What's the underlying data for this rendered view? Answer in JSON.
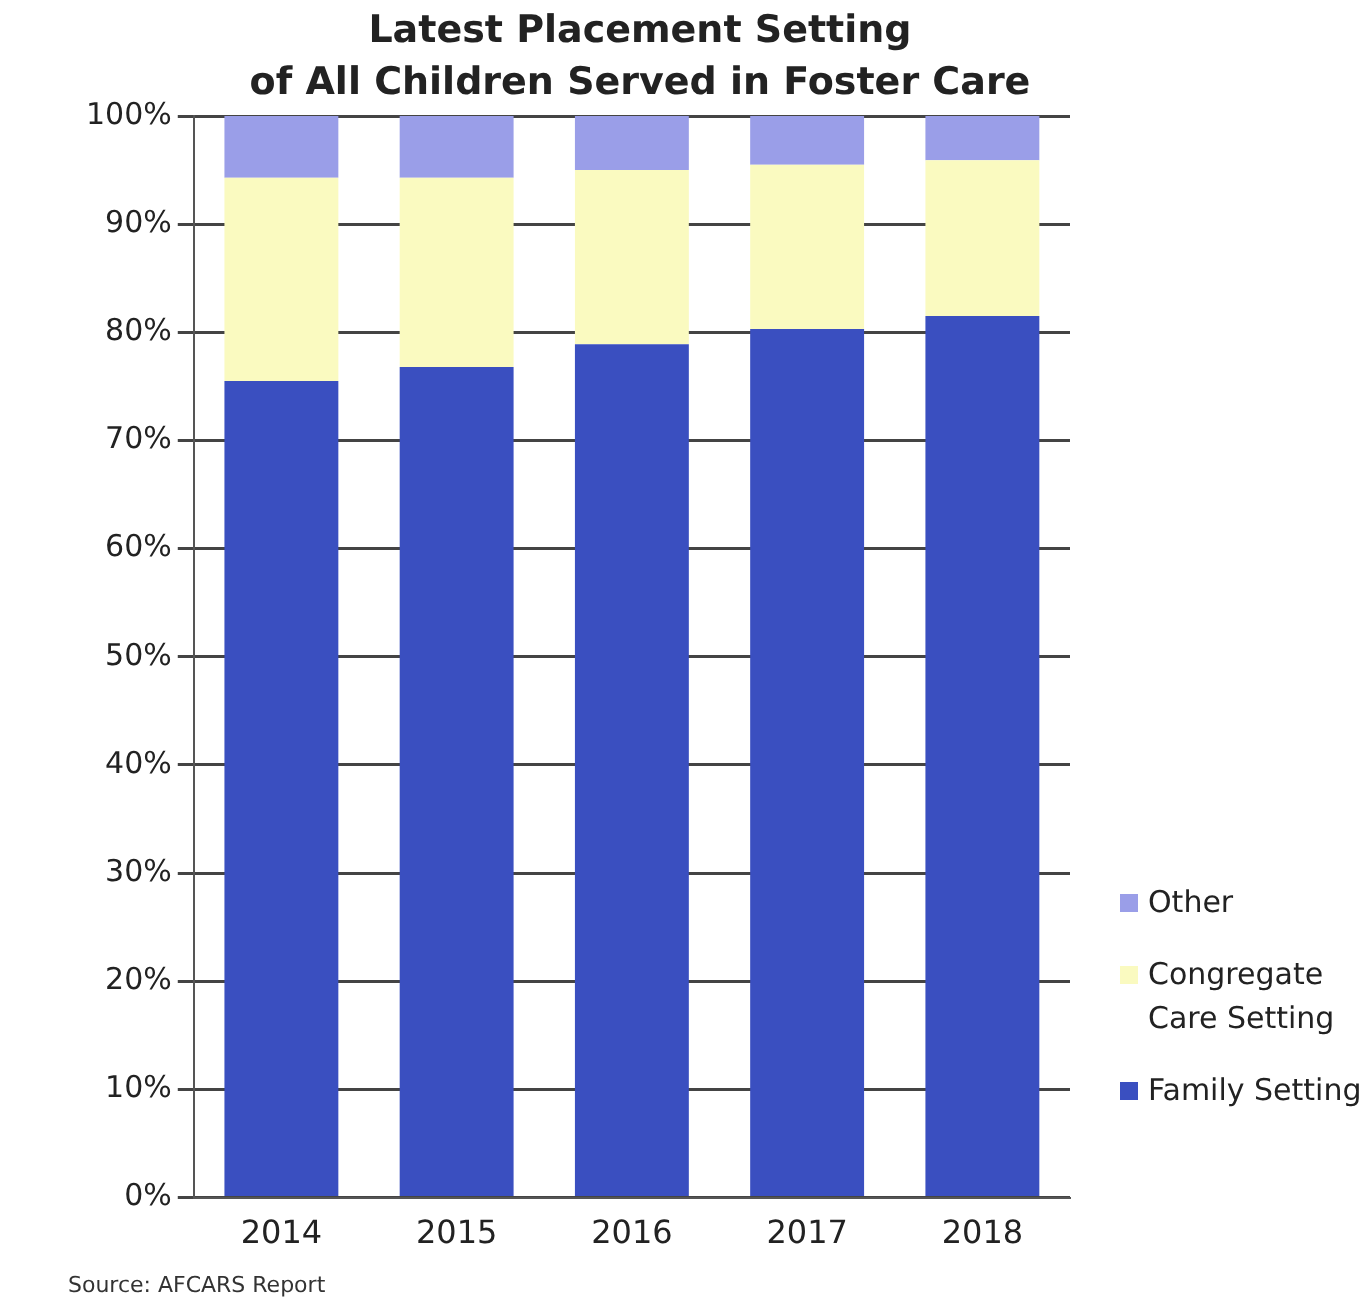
{
  "chart_data": {
    "type": "bar",
    "title": "Latest Placement Setting\nof All Children Served in Foster Care",
    "categories": [
      "2014",
      "2015",
      "2016",
      "2017",
      "2018"
    ],
    "stacked": true,
    "series": [
      {
        "name": "Family Setting",
        "color": "#3a4fc0",
        "values": [
          75.5,
          76.8,
          78.9,
          80.3,
          81.5
        ]
      },
      {
        "name": "Congregate Care Setting",
        "color": "#fafac0",
        "values": [
          18.8,
          17.5,
          16.1,
          15.2,
          14.4
        ]
      },
      {
        "name": "Other",
        "color": "#9a9ee8",
        "values": [
          5.7,
          5.7,
          5.0,
          4.5,
          4.1
        ]
      }
    ],
    "ylim": [
      0,
      100
    ],
    "yticks": [
      {
        "value": 0,
        "label": "0%"
      },
      {
        "value": 10,
        "label": "10%"
      },
      {
        "value": 20,
        "label": "20%"
      },
      {
        "value": 30,
        "label": "30%"
      },
      {
        "value": 40,
        "label": "40%"
      },
      {
        "value": 50,
        "label": "50%"
      },
      {
        "value": 60,
        "label": "60%"
      },
      {
        "value": 70,
        "label": "70%"
      },
      {
        "value": 80,
        "label": "80%"
      },
      {
        "value": 90,
        "label": "90%"
      },
      {
        "value": 100,
        "label": "100%"
      }
    ],
    "grid": "y",
    "legend": "right",
    "annotations": [
      "Source: AFCARS Report"
    ]
  }
}
